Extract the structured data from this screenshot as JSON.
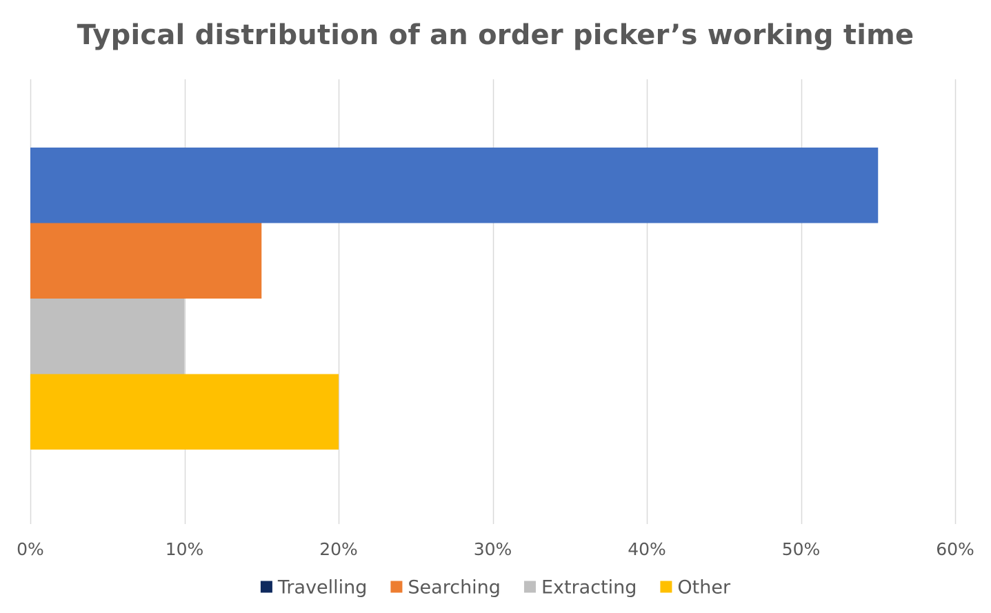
{
  "chart_data": {
    "type": "bar",
    "orientation": "horizontal",
    "title": "Typical distribution of an order picker’s working time",
    "xlabel": "",
    "ylabel": "",
    "xlim": [
      0,
      0.6
    ],
    "x_ticks": [
      0,
      0.1,
      0.2,
      0.3,
      0.4,
      0.5,
      0.6
    ],
    "x_tick_labels": [
      "0%",
      "10%",
      "20%",
      "30%",
      "40%",
      "50%",
      "60%"
    ],
    "grid": "vertical",
    "legend_position": "bottom",
    "series": [
      {
        "name": "Travelling",
        "value": 0.55,
        "color": "#4472C4",
        "legend_color": "#0F2A5E"
      },
      {
        "name": "Searching",
        "value": 0.15,
        "color": "#ED7D31",
        "legend_color": "#ED7D31"
      },
      {
        "name": "Extracting",
        "value": 0.1,
        "color": "#BFBFBF",
        "legend_color": "#BFBFBF"
      },
      {
        "name": "Other",
        "value": 0.2,
        "color": "#FFC000",
        "legend_color": "#FFC000"
      }
    ]
  }
}
